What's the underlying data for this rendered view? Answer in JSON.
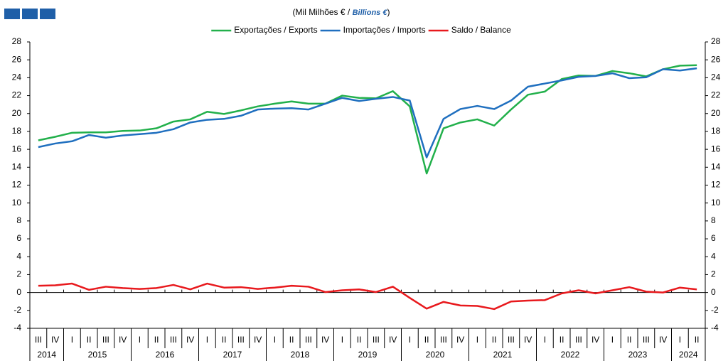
{
  "chart_data": {
    "type": "line",
    "title_parts": [
      "(Mil Milhões  € / ",
      "Billions €",
      ")"
    ],
    "categories": [
      "III",
      "IV",
      "I",
      "II",
      "III",
      "IV",
      "I",
      "II",
      "III",
      "IV",
      "I",
      "II",
      "III",
      "IV",
      "I",
      "II",
      "III",
      "IV",
      "I",
      "II",
      "III",
      "IV",
      "I",
      "II",
      "III",
      "IV",
      "I",
      "II",
      "III",
      "IV",
      "I",
      "II",
      "III",
      "IV",
      "I",
      "II",
      "III",
      "IV",
      "I",
      "II"
    ],
    "years": [
      "2014",
      "2015",
      "2016",
      "2017",
      "2018",
      "2019",
      "2020",
      "2021",
      "2022",
      "2023",
      "2024"
    ],
    "series": [
      {
        "name": "Exportações / Exports",
        "color": "#22b04b",
        "values": [
          17.0,
          17.4,
          17.85,
          17.9,
          17.9,
          18.05,
          18.1,
          18.35,
          19.1,
          19.35,
          20.2,
          19.95,
          20.35,
          20.8,
          21.1,
          21.35,
          21.1,
          21.1,
          22.0,
          21.75,
          21.7,
          22.5,
          20.8,
          13.3,
          18.35,
          19.0,
          19.35,
          18.65,
          20.45,
          22.1,
          22.45,
          23.85,
          24.25,
          24.2,
          24.75,
          24.5,
          24.15,
          24.95,
          25.35,
          25.4
        ]
      },
      {
        "name": "Importações / Imports",
        "color": "#1f6fbf",
        "values": [
          16.25,
          16.65,
          16.9,
          17.6,
          17.3,
          17.55,
          17.7,
          17.85,
          18.25,
          19.0,
          19.3,
          19.4,
          19.75,
          20.45,
          20.55,
          20.6,
          20.45,
          21.1,
          21.75,
          21.4,
          21.65,
          21.85,
          21.45,
          15.1,
          19.4,
          20.5,
          20.85,
          20.5,
          21.45,
          23.0,
          23.35,
          23.7,
          24.1,
          24.2,
          24.5,
          23.95,
          24.05,
          24.95,
          24.8,
          25.05
        ]
      },
      {
        "name": "Saldo / Balance",
        "color": "#e8191d",
        "values": [
          0.75,
          0.8,
          1.0,
          0.3,
          0.65,
          0.5,
          0.4,
          0.5,
          0.85,
          0.35,
          1.0,
          0.55,
          0.6,
          0.4,
          0.55,
          0.75,
          0.65,
          0.05,
          0.25,
          0.35,
          0.05,
          0.65,
          -0.6,
          -1.8,
          -1.05,
          -1.45,
          -1.5,
          -1.85,
          -1.0,
          -0.9,
          -0.85,
          -0.1,
          0.25,
          -0.1,
          0.25,
          0.6,
          0.1,
          0.0,
          0.55,
          0.35
        ]
      }
    ],
    "ylim": [
      -4,
      28
    ],
    "yticks": [
      -4,
      -2,
      0,
      2,
      4,
      6,
      8,
      10,
      12,
      14,
      16,
      18,
      20,
      22,
      24,
      26,
      28
    ],
    "y2lim": [
      -4,
      28
    ],
    "y2ticks": [
      -4,
      -2,
      0,
      2,
      4,
      6,
      8,
      10,
      12,
      14,
      16,
      18,
      20,
      22,
      24,
      26,
      28
    ],
    "legend": "top"
  }
}
